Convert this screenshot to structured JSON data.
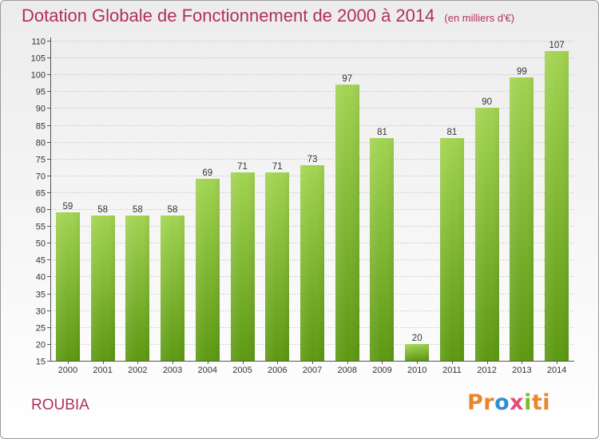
{
  "chart_data": {
    "type": "bar",
    "title": "Dotation Globale de Fonctionnement de 2000 à 2014",
    "unit_label": "(en milliers d'€)",
    "categories": [
      "2000",
      "2001",
      "2002",
      "2003",
      "2004",
      "2005",
      "2006",
      "2007",
      "2008",
      "2009",
      "2010",
      "2011",
      "2012",
      "2013",
      "2014"
    ],
    "values": [
      59,
      58,
      58,
      58,
      69,
      71,
      71,
      73,
      97,
      81,
      20,
      81,
      90,
      99,
      107
    ],
    "ylim": [
      15,
      110
    ],
    "yticks": [
      15,
      20,
      25,
      30,
      35,
      40,
      45,
      50,
      55,
      60,
      65,
      70,
      75,
      80,
      85,
      90,
      95,
      100,
      105,
      110
    ],
    "xlabel": "",
    "ylabel": "",
    "grid": "horizontal-dotted",
    "bar_color_top": "#9ed14e",
    "bar_color_bottom": "#5e9a14"
  },
  "commune": "ROUBIA",
  "logo": {
    "parts": [
      "Pr",
      "o",
      "x",
      "i",
      "ti"
    ]
  },
  "colors": {
    "title": "#b0305a",
    "commune": "#b0305a"
  }
}
